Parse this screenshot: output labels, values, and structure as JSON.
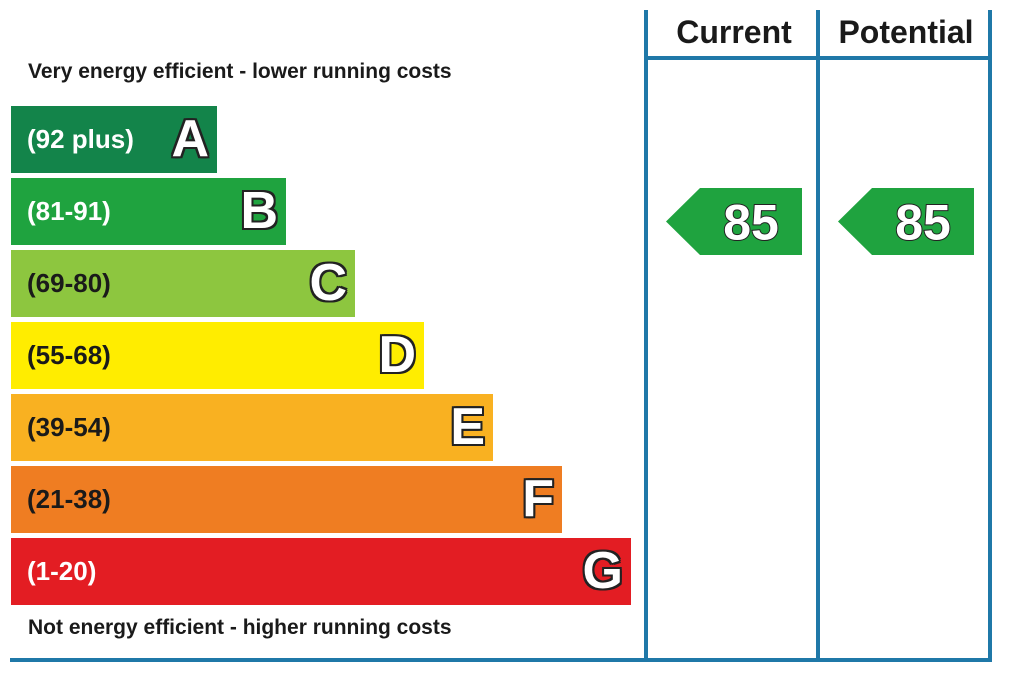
{
  "chart_data": {
    "type": "bar",
    "title": "",
    "top_caption": "Very energy efficient - lower running costs",
    "bottom_caption": "Not energy efficient - higher running costs",
    "bands": [
      {
        "letter": "A",
        "range": "(92 plus)",
        "min": 92,
        "max": 100,
        "color": "#13844a",
        "text_color": "#ffffff"
      },
      {
        "letter": "B",
        "range": "(81-91)",
        "min": 81,
        "max": 91,
        "color": "#1fa33f",
        "text_color": "#ffffff"
      },
      {
        "letter": "C",
        "range": "(69-80)",
        "min": 69,
        "max": 80,
        "color": "#8dc63f",
        "text_color": "#1a1a1a"
      },
      {
        "letter": "D",
        "range": "(55-68)",
        "min": 55,
        "max": 68,
        "color": "#ffed00",
        "text_color": "#1a1a1a"
      },
      {
        "letter": "E",
        "range": "(39-54)",
        "min": 39,
        "max": 54,
        "color": "#f9b121",
        "text_color": "#1a1a1a"
      },
      {
        "letter": "F",
        "range": "(21-38)",
        "min": 21,
        "max": 38,
        "color": "#ef7d22",
        "text_color": "#1a1a1a"
      },
      {
        "letter": "G",
        "range": "(1-20)",
        "min": 1,
        "max": 20,
        "color": "#e31d23",
        "text_color": "#ffffff"
      }
    ],
    "columns": [
      {
        "name": "Current",
        "value": 85,
        "band": "B"
      },
      {
        "name": "Potential",
        "value": 85,
        "band": "B"
      }
    ],
    "frame_color": "#1f78a8",
    "arrow_color": "#1fa33f"
  }
}
